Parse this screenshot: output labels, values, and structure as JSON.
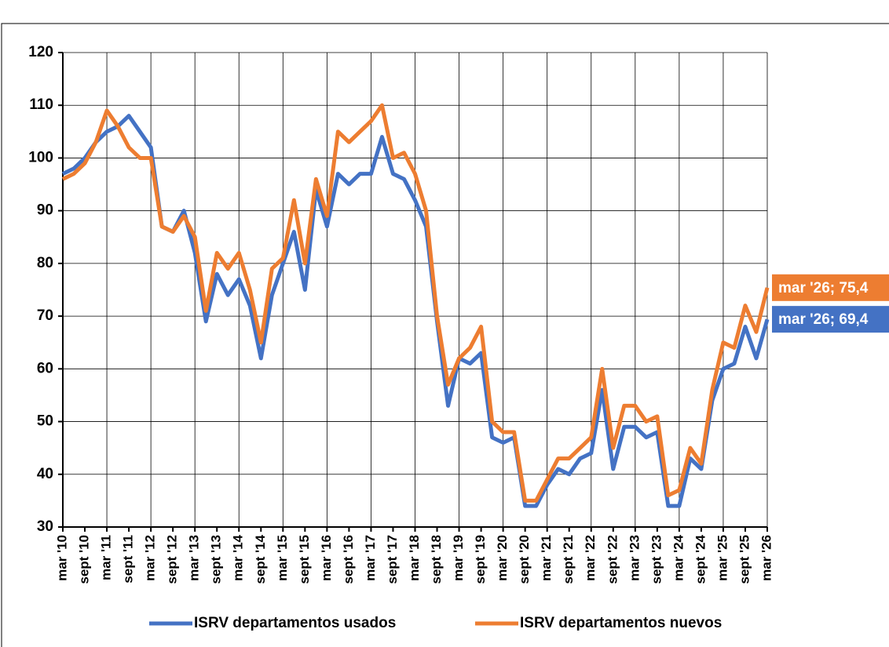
{
  "chart_data": {
    "type": "line",
    "categories": [
      "mar '10",
      null,
      "sept '10",
      null,
      "mar '11",
      null,
      "sept '11",
      null,
      "mar '12",
      null,
      "sept '12",
      null,
      "mar '13",
      null,
      "sept '13",
      null,
      "mar '14",
      null,
      "sept '14",
      null,
      "mar '15",
      null,
      "sept '15",
      null,
      "mar '16",
      null,
      "sept '16",
      null,
      "mar '17",
      null,
      "sept '17",
      null,
      "mar '18",
      null,
      "sept '18",
      null,
      "mar '19",
      null,
      "sept '19",
      null,
      "mar '20",
      null,
      "sept '20",
      null,
      "mar '21",
      null,
      "sept '21",
      null,
      "mar '22",
      null,
      "sept '22",
      null,
      "mar '23",
      null,
      "sept '23",
      null,
      "mar '24",
      null,
      "sept '24",
      null,
      "mar '25",
      null,
      "sept '25",
      null,
      "mar '26"
    ],
    "series": [
      {
        "name": "ISRV departamentos usados",
        "color": "#4472c4",
        "values": [
          97,
          98,
          100,
          103,
          105,
          106,
          108,
          105,
          102,
          87,
          86,
          90,
          82,
          69,
          78,
          74,
          77,
          72,
          62,
          74,
          80,
          86,
          75,
          94,
          87,
          97,
          95,
          97,
          97,
          104,
          97,
          96,
          92,
          87,
          69,
          53,
          62,
          61,
          63,
          47,
          46,
          47,
          34,
          34,
          38,
          41,
          40,
          43,
          44,
          56,
          41,
          49,
          49,
          47,
          48,
          34,
          34,
          43,
          41,
          54,
          60,
          61,
          68,
          62,
          69.4
        ]
      },
      {
        "name": "ISRV departamentos nuevos",
        "color": "#ed7d31",
        "values": [
          96,
          97,
          99,
          103,
          109,
          106,
          102,
          100,
          100,
          87,
          86,
          89,
          85,
          71,
          82,
          79,
          82,
          75,
          65,
          79,
          81,
          92,
          80,
          96,
          89,
          105,
          103,
          105,
          107,
          110,
          100,
          101,
          97,
          90,
          70,
          57,
          62,
          64,
          68,
          50,
          48,
          48,
          35,
          35,
          39,
          43,
          43,
          45,
          47,
          60,
          45,
          53,
          53,
          50,
          51,
          36,
          37,
          45,
          42,
          56,
          65,
          64,
          72,
          67,
          75.4
        ]
      }
    ],
    "annotations": [
      {
        "label": "mar '26; 75,4",
        "value": 75.4,
        "color": "#ed7d31"
      },
      {
        "label": "mar '26; 69,4",
        "value": 69.4,
        "color": "#4472c4"
      }
    ],
    "ylim": [
      30,
      120
    ],
    "yticks": [
      30,
      40,
      50,
      60,
      70,
      80,
      90,
      100,
      110,
      120
    ],
    "grid": true
  }
}
